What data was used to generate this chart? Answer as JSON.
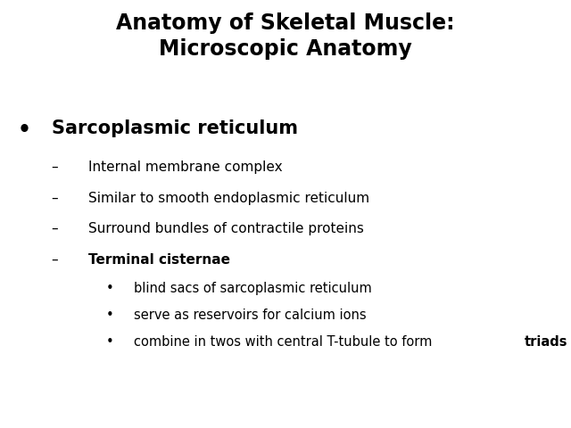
{
  "title_line1": "Anatomy of Skeletal Muscle:",
  "title_line2": "Microscopic Anatomy",
  "background_color": "#ffffff",
  "title_color": "#000000",
  "title_fontsize": 17,
  "title_fontweight": "bold",
  "bullet1": "Sarcoplasmic reticulum",
  "bullet1_fontsize": 15,
  "bullet1_fontweight": "bold",
  "dash_items": [
    "Internal membrane complex",
    "Similar to smooth endoplasmic reticulum",
    "Surround bundles of contractile proteins",
    "Terminal cisternae"
  ],
  "dash_bold_index": 3,
  "sub_bullets": [
    "blind sacs of sarcoplasmic reticulum",
    "serve as reservoirs for calcium ions",
    "combine in twos with central T-tubule to form "
  ],
  "sub_bullet_bold_suffix": "triads",
  "dash_fontsize": 11,
  "sub_bullet_fontsize": 10.5
}
